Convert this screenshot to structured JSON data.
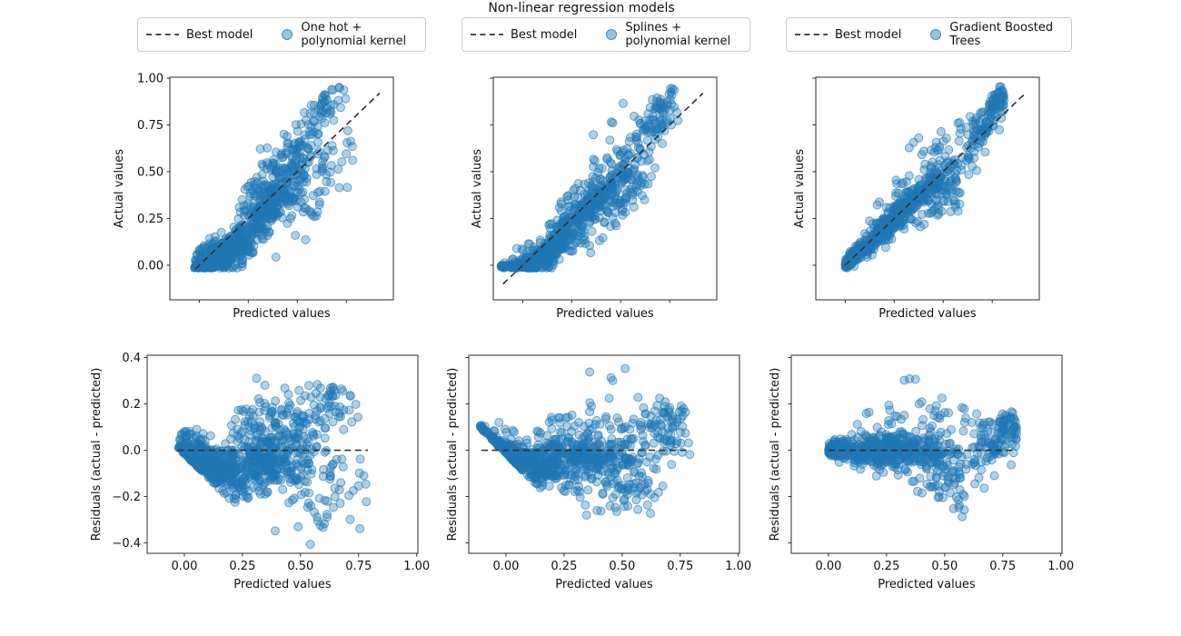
{
  "figure": {
    "title": "Non-linear regression models"
  },
  "colors": {
    "scatter_fill": "#1f77b4",
    "scatter_edge": "#1f77b4",
    "dashed_line": "#303030",
    "spine": "#2b2b2b",
    "legend_border": "#cccccc"
  },
  "legend": [
    {
      "line_label": "Best model",
      "model_label_lines": [
        "One hot +",
        "polynomial kernel"
      ]
    },
    {
      "line_label": "Best model",
      "model_label_lines": [
        "Splines +",
        "polynomial kernel"
      ]
    },
    {
      "line_label": "Best model",
      "model_label_lines": [
        "Gradient Boosted",
        "Trees"
      ]
    }
  ],
  "chart_data": {
    "figure_title": "Non-linear regression models",
    "grid": "off",
    "marker": {
      "shape": "circle",
      "radius_px": 4.5,
      "fill_opacity": 0.35,
      "edge_opacity": 0.6
    },
    "panels": [
      {
        "id": "actual-vs-predicted-onehot",
        "type": "scatter",
        "row": 0,
        "col": 0,
        "model": "One hot + polynomial kernel",
        "dataset": 0,
        "xlabel": "Predicted values",
        "ylabel": "Actual values",
        "xlim": [
          -0.15,
          0.99
        ],
        "ylim": [
          -0.185,
          1.005
        ],
        "xticks": [
          0,
          0.25,
          0.5,
          0.75
        ],
        "yticks": [
          0,
          0.25,
          0.5,
          0.75,
          1
        ],
        "xtick_labels": null,
        "ytick_labels": [
          "0.00",
          "0.25",
          "0.50",
          "0.75",
          "1.00"
        ],
        "line": {
          "kind": "identity",
          "label": "Best model",
          "from": -0.02,
          "to": 0.92
        }
      },
      {
        "id": "actual-vs-predicted-splines",
        "type": "scatter",
        "row": 0,
        "col": 1,
        "model": "Splines + polynomial kernel",
        "dataset": 1,
        "xlabel": "Predicted values",
        "ylabel": "Actual values",
        "xlim": [
          -0.15,
          0.99
        ],
        "ylim": [
          -0.185,
          1.005
        ],
        "xticks": [
          0,
          0.25,
          0.5,
          0.75
        ],
        "yticks": [
          0,
          0.25,
          0.5,
          0.75,
          1
        ],
        "xtick_labels": null,
        "ytick_labels": null,
        "line": {
          "kind": "identity",
          "label": "Best model",
          "from": -0.1,
          "to": 0.92
        }
      },
      {
        "id": "actual-vs-predicted-gbt",
        "type": "scatter",
        "row": 0,
        "col": 2,
        "model": "Gradient Boosted Trees",
        "dataset": 2,
        "xlabel": "Predicted values",
        "ylabel": "Actual values",
        "xlim": [
          -0.15,
          0.99
        ],
        "ylim": [
          -0.185,
          1.005
        ],
        "xticks": [
          0,
          0.25,
          0.5,
          0.75
        ],
        "yticks": [
          0,
          0.25,
          0.5,
          0.75,
          1
        ],
        "xtick_labels": null,
        "ytick_labels": null,
        "line": {
          "kind": "identity",
          "label": "Best model",
          "from": 0.0,
          "to": 0.92
        }
      },
      {
        "id": "residuals-vs-predicted-onehot",
        "type": "scatter",
        "row": 1,
        "col": 0,
        "model": "One hot + polynomial kernel",
        "dataset": 0,
        "xlabel": "Predicted values",
        "ylabel": "Residuals (actual - predicted)",
        "xlim": [
          -0.16,
          1.005
        ],
        "ylim": [
          -0.445,
          0.41
        ],
        "xticks": [
          0,
          0.25,
          0.5,
          0.75,
          1
        ],
        "yticks": [
          -0.4,
          -0.2,
          0,
          0.2,
          0.4
        ],
        "xtick_labels": [
          "0.00",
          "0.25",
          "0.50",
          "0.75",
          "1.00"
        ],
        "ytick_labels": [
          "−0.4",
          "−0.2",
          "0.0",
          "0.2",
          "0.4"
        ],
        "line": {
          "kind": "zero",
          "label": "Best model",
          "from": -0.03,
          "to": 0.79
        }
      },
      {
        "id": "residuals-vs-predicted-splines",
        "type": "scatter",
        "row": 1,
        "col": 1,
        "model": "Splines + polynomial kernel",
        "dataset": 1,
        "xlabel": "Predicted values",
        "ylabel": "Residuals (actual - predicted)",
        "xlim": [
          -0.16,
          1.005
        ],
        "ylim": [
          -0.445,
          0.41
        ],
        "xticks": [
          0,
          0.25,
          0.5,
          0.75,
          1
        ],
        "yticks": [
          -0.4,
          -0.2,
          0,
          0.2,
          0.4
        ],
        "xtick_labels": [
          "0.00",
          "0.25",
          "0.50",
          "0.75",
          "1.00"
        ],
        "ytick_labels": null,
        "line": {
          "kind": "zero",
          "label": "Best model",
          "from": -0.105,
          "to": 0.794
        }
      },
      {
        "id": "residuals-vs-predicted-gbt",
        "type": "scatter",
        "row": 1,
        "col": 2,
        "model": "Gradient Boosted Trees",
        "dataset": 2,
        "xlabel": "Predicted values",
        "ylabel": "Residuals (actual - predicted)",
        "xlim": [
          -0.16,
          1.005
        ],
        "ylim": [
          -0.445,
          0.41
        ],
        "xticks": [
          0,
          0.25,
          0.5,
          0.75,
          1
        ],
        "yticks": [
          -0.4,
          -0.2,
          0,
          0.2,
          0.4
        ],
        "xtick_labels": [
          "0.00",
          "0.25",
          "0.50",
          "0.75",
          "1.00"
        ],
        "ytick_labels": null,
        "line": {
          "kind": "zero",
          "label": "Best model",
          "from": 0.0,
          "to": 0.8
        }
      }
    ],
    "datasets": [
      {
        "name": "One hot + polynomial kernel",
        "seed": 11,
        "clusters": [
          {
            "n": 380,
            "xMu": 0.08,
            "xSd": 0.085,
            "xMin": -0.025,
            "xMax": 0.26,
            "rSlope": -0.55,
            "rInt": 0.0,
            "rSd": 0.04
          },
          {
            "n": 280,
            "xMu": 0.33,
            "xSd": 0.09,
            "xMin": 0.14,
            "xMax": 0.62,
            "rSlope": 0,
            "rInt": -0.045,
            "rSd": 0.07
          },
          {
            "n": 130,
            "xMu": 0.42,
            "xSd": 0.11,
            "xMin": 0.2,
            "xMax": 0.76,
            "rSlope": 0,
            "rInt": 0.1,
            "rSd": 0.08
          },
          {
            "n": 80,
            "xMu": 0.55,
            "xSd": 0.12,
            "xMin": 0.28,
            "xMax": 0.79,
            "rSlope": 0,
            "rInt": -0.08,
            "rSd": 0.11
          },
          {
            "n": 40,
            "xMu": 0.63,
            "xSd": 0.055,
            "xMin": 0.5,
            "xMax": 0.75,
            "rSlope": 0,
            "rInt": 0.23,
            "rSd": 0.05
          },
          {
            "n": 12,
            "xMu": 0.62,
            "xSd": 0.08,
            "xMin": 0.45,
            "xMax": 0.79,
            "rSlope": 0,
            "rInt": -0.3,
            "rSd": 0.06
          }
        ]
      },
      {
        "name": "Splines + polynomial kernel",
        "seed": 22,
        "clusters": [
          {
            "n": 340,
            "xMu": 0.05,
            "xSd": 0.1,
            "xMin": -0.11,
            "xMax": 0.32,
            "rSlope": -0.42,
            "rInt": -0.012,
            "rSd": 0.038
          },
          {
            "n": 300,
            "xMu": 0.3,
            "xSd": 0.12,
            "xMin": 0.02,
            "xMax": 0.62,
            "rSlope": 0,
            "rInt": -0.03,
            "rSd": 0.05
          },
          {
            "n": 90,
            "xMu": 0.52,
            "xSd": 0.09,
            "xMin": 0.3,
            "xMax": 0.68,
            "rSlope": 0,
            "rInt": -0.14,
            "rSd": 0.08
          },
          {
            "n": 80,
            "xMu": 0.42,
            "xSd": 0.16,
            "xMin": 0.08,
            "xMax": 0.76,
            "rSlope": 0,
            "rInt": 0.09,
            "rSd": 0.06
          },
          {
            "n": 60,
            "xMu": 0.7,
            "xSd": 0.05,
            "xMin": 0.6,
            "xMax": 0.81,
            "rSlope": 0,
            "rInt": 0.1,
            "rSd": 0.07
          },
          {
            "n": 4,
            "xMu": 0.42,
            "xSd": 0.12,
            "xMin": 0.2,
            "xMax": 0.6,
            "rSlope": 0,
            "rInt": 0.31,
            "rSd": 0.04
          }
        ]
      },
      {
        "name": "Gradient Boosted Trees",
        "seed": 33,
        "clusters": [
          {
            "n": 200,
            "xMu": 0.035,
            "xSd": 0.03,
            "xMin": 0.0,
            "xMax": 0.13,
            "rSlope": 0,
            "rInt": 0.002,
            "rSd": 0.013
          },
          {
            "n": 420,
            "xMu": 0.25,
            "xSd": 0.13,
            "xMin": 0.02,
            "xMax": 0.56,
            "rSlope": 0,
            "rInt": 0.0,
            "rSd": 0.035
          },
          {
            "n": 90,
            "xMu": 0.53,
            "xSd": 0.08,
            "xMin": 0.36,
            "xMax": 0.68,
            "rSlope": 0,
            "rInt": -0.1,
            "rSd": 0.07
          },
          {
            "n": 70,
            "xMu": 0.7,
            "xSd": 0.05,
            "xMin": 0.58,
            "xMax": 0.81,
            "rSlope": 0,
            "rInt": 0.02,
            "rSd": 0.05
          },
          {
            "n": 50,
            "xMu": 0.77,
            "xSd": 0.03,
            "xMin": 0.68,
            "xMax": 0.81,
            "rSlope": 0,
            "rInt": 0.1,
            "rSd": 0.04
          },
          {
            "n": 40,
            "xMu": 0.38,
            "xSd": 0.12,
            "xMin": 0.15,
            "xMax": 0.62,
            "rSlope": 0,
            "rInt": 0.135,
            "rSd": 0.05
          },
          {
            "n": 3,
            "xMu": 0.33,
            "xSd": 0.14,
            "xMin": 0.18,
            "xMax": 0.56,
            "rSlope": 0,
            "rInt": 0.31,
            "rSd": 0.012
          }
        ]
      }
    ]
  }
}
